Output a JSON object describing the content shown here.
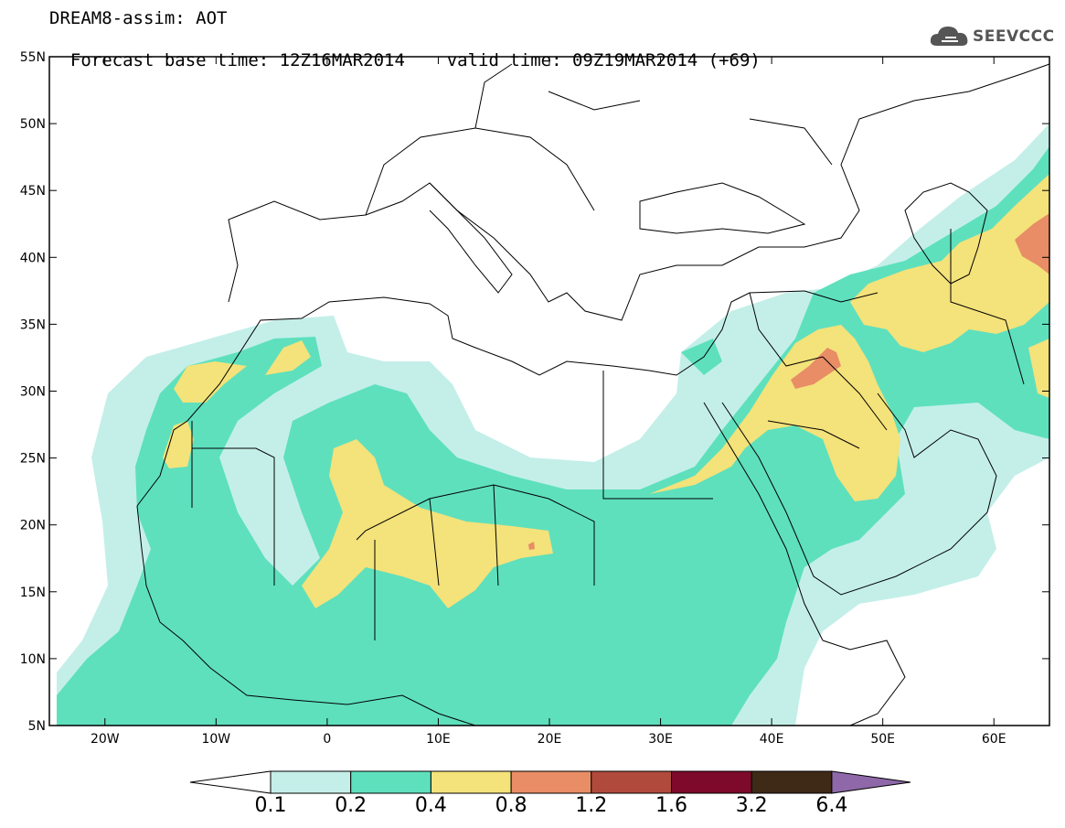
{
  "title": {
    "line1": "DREAM8-assim: AOT",
    "line2_base": "Forecast base time: 12Z16MAR2014",
    "line2_valid": "valid time: 09Z19MAR2014 (+69)"
  },
  "logo": {
    "text": "SEEVCCC",
    "icon": "cloud-icon"
  },
  "map": {
    "lon_range": [
      -25,
      65
    ],
    "lat_range": [
      5,
      55
    ],
    "lon_ticks": [
      "20W",
      "10W",
      "0",
      "10E",
      "20E",
      "30E",
      "40E",
      "50E",
      "60E"
    ],
    "lat_ticks": [
      "5N",
      "10N",
      "15N",
      "20N",
      "25N",
      "30N",
      "35N",
      "40N",
      "45N",
      "50N",
      "55N"
    ]
  },
  "colorbar": {
    "levels": [
      "0.1",
      "0.2",
      "0.4",
      "0.8",
      "1.2",
      "1.6",
      "3.2",
      "6.4"
    ],
    "colors": [
      "#ffffff",
      "#c4efe9",
      "#5ee0bd",
      "#f4e27a",
      "#e88d66",
      "#b04a3d",
      "#7d0a2a",
      "#3f2a17",
      "#8e68a8"
    ]
  }
}
